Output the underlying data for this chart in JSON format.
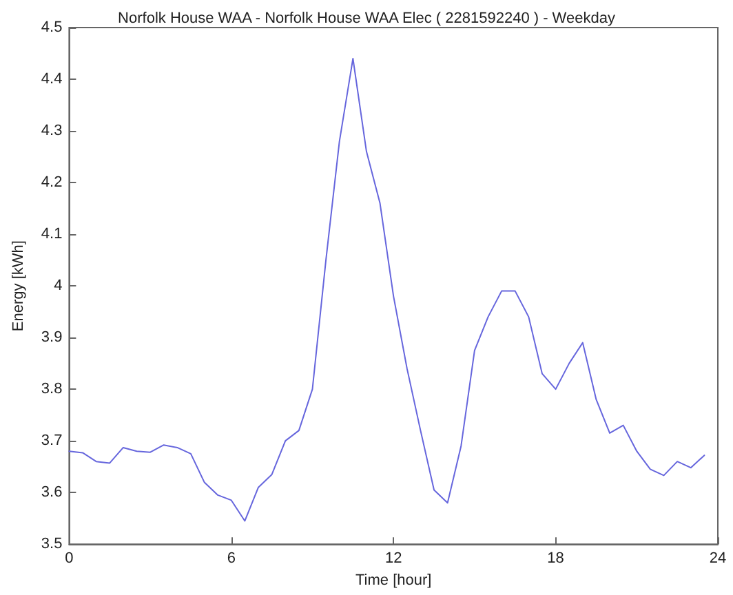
{
  "chart_data": {
    "type": "line",
    "title": "Norfolk House WAA - Norfolk House WAA Elec ( 2281592240 ) - Weekday",
    "xlabel": "Time [hour]",
    "ylabel": "Energy [kWh]",
    "x": [
      0,
      0.5,
      1,
      1.5,
      2,
      2.5,
      3,
      3.5,
      4,
      4.5,
      5,
      5.5,
      6,
      6.5,
      7,
      7.5,
      8,
      8.5,
      9,
      9.5,
      10,
      10.5,
      11,
      11.5,
      12,
      12.5,
      13,
      13.5,
      14,
      14.5,
      15,
      15.5,
      16,
      16.5,
      17,
      17.5,
      18,
      18.5,
      19,
      19.5,
      20,
      20.5,
      21,
      21.5,
      22,
      22.5,
      23,
      23.5
    ],
    "series": [
      {
        "color": "#6666dd",
        "values": [
          3.68,
          3.677,
          3.66,
          3.657,
          3.687,
          3.68,
          3.678,
          3.692,
          3.687,
          3.675,
          3.62,
          3.595,
          3.585,
          3.545,
          3.61,
          3.635,
          3.7,
          3.72,
          3.8,
          4.05,
          4.28,
          4.44,
          4.26,
          4.16,
          3.98,
          3.84,
          3.72,
          3.605,
          3.58,
          3.69,
          3.875,
          3.94,
          3.99,
          3.99,
          3.94,
          3.83,
          3.8,
          3.85,
          3.89,
          3.78,
          3.715,
          3.73,
          3.68,
          3.645,
          3.633,
          3.66,
          3.648,
          3.672
        ]
      }
    ],
    "xlim": [
      0,
      24
    ],
    "xticks": [
      0,
      6,
      12,
      18,
      24
    ],
    "ylim": [
      3.5,
      4.5
    ],
    "yticks": [
      3.5,
      3.6,
      3.7,
      3.8,
      3.9,
      4,
      4.1,
      4.2,
      4.3,
      4.4,
      4.5
    ],
    "grid": false,
    "marker": "none",
    "line_style": "solid"
  }
}
